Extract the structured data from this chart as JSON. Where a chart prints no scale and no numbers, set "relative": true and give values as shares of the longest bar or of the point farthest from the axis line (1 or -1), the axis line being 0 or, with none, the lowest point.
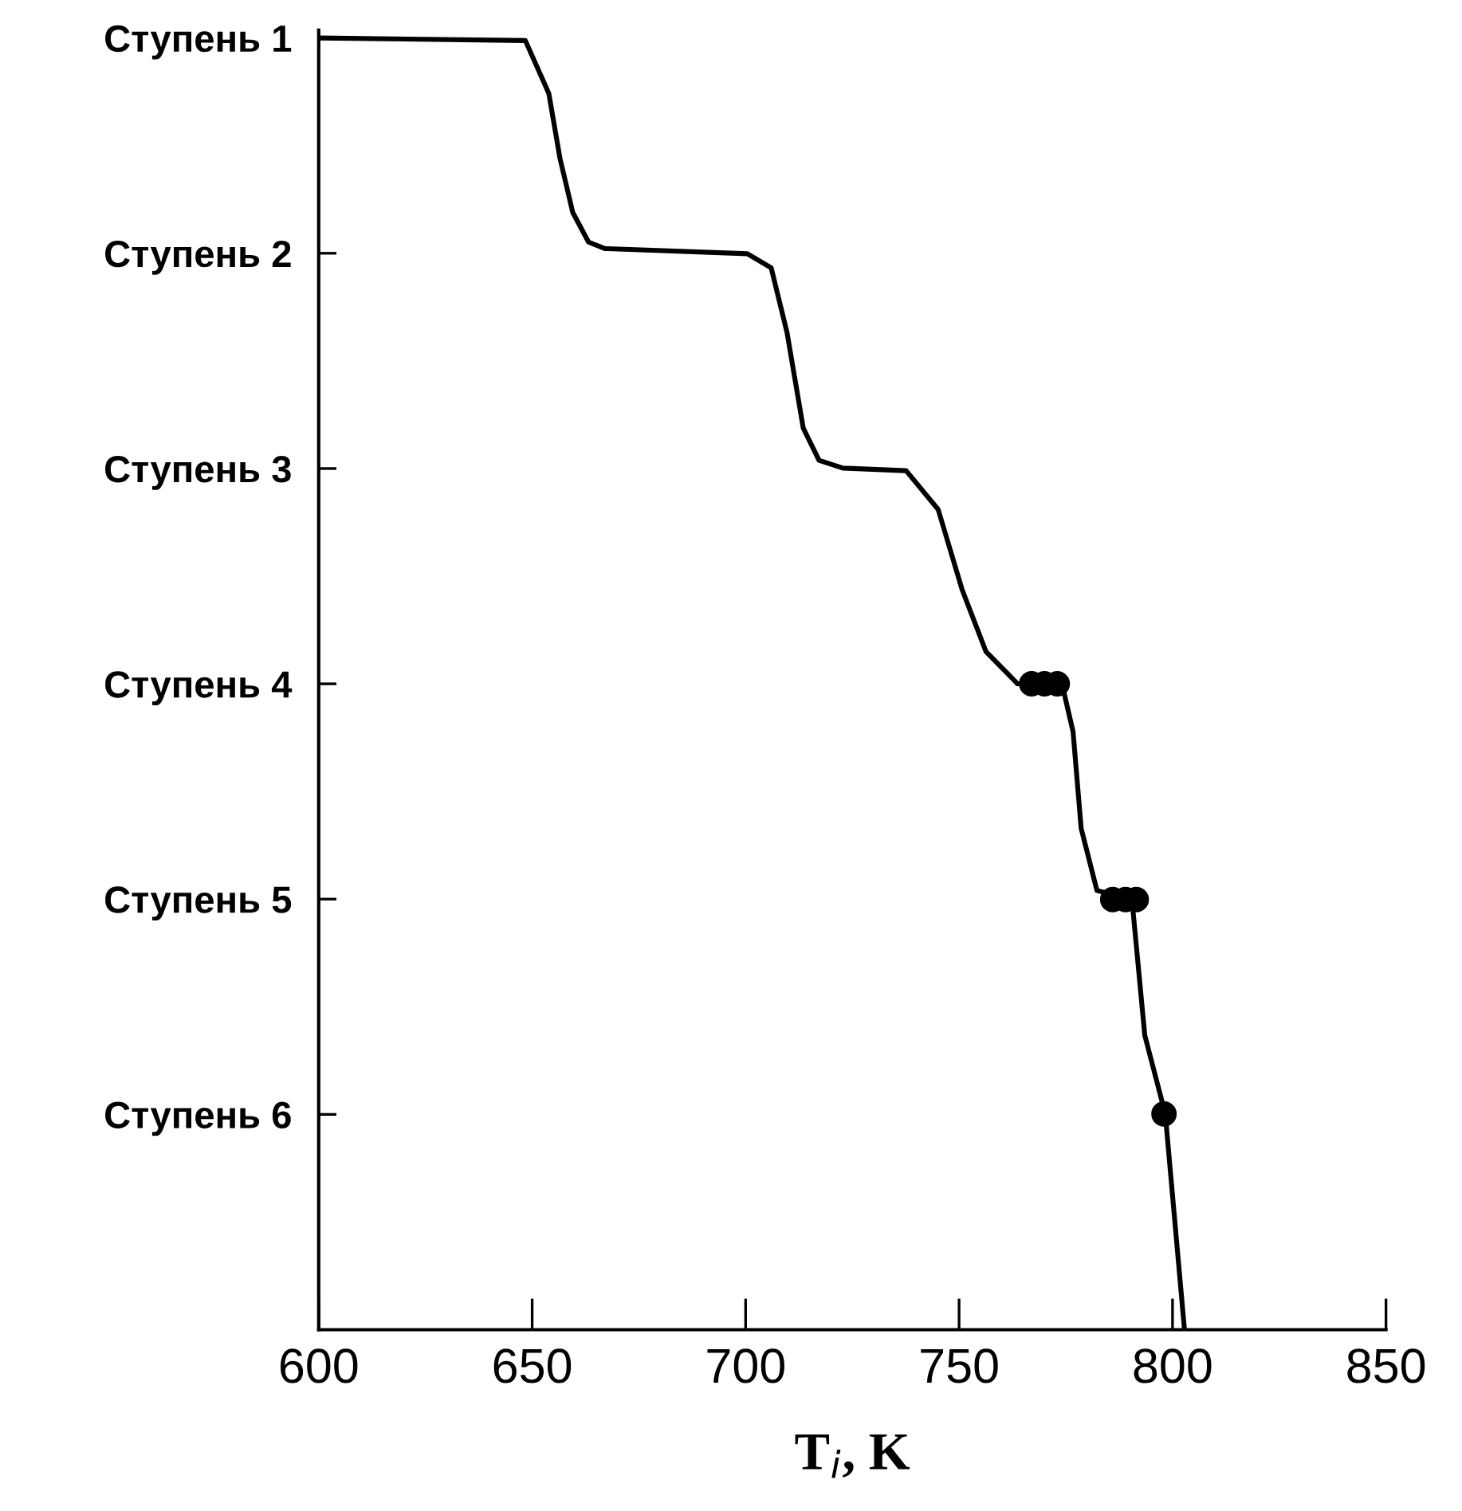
{
  "chart_data": {
    "type": "line",
    "xlabel": "T$_{i}$, K",
    "relative": true,
    "xlim": [
      600,
      850
    ],
    "xticks": [
      600,
      650,
      700,
      750,
      800,
      850
    ],
    "annotations": [
      "Ступень 1",
      "Ступень 2",
      "Ступень 3",
      "Ступень 4",
      "Ступень 5",
      "Ступень 6"
    ],
    "grid": false,
    "legend": false,
    "series": [
      {
        "color": "#000000",
        "x": [
          600,
          648.4,
          653.9,
          656.5,
          659.5,
          663.2,
          667.0,
          700.4,
          706.0,
          709.7,
          713.5,
          717.2,
          722.8,
          737.6,
          745.1,
          750.7,
          756.3,
          763.7,
          774.1,
          776.7,
          778.6,
          782.3,
          790.5,
          793.5,
          798.3,
          802.8
        ],
        "values": [
          1,
          0.998,
          0.957,
          0.907,
          0.865,
          0.842,
          0.837,
          0.833,
          0.822,
          0.772,
          0.698,
          0.673,
          0.667,
          0.665,
          0.635,
          0.573,
          0.525,
          0.5,
          0.5,
          0.463,
          0.388,
          0.34,
          0.333,
          0.228,
          0.167,
          0
        ]
      },
      {
        "type": "scatter",
        "color": "#000000",
        "marker": "circle",
        "x": [
          767,
          770,
          773,
          786,
          789,
          791.5,
          798
        ],
        "values": [
          0.5,
          0.5,
          0.5,
          0.333,
          0.333,
          0.333,
          0.167
        ]
      }
    ]
  }
}
